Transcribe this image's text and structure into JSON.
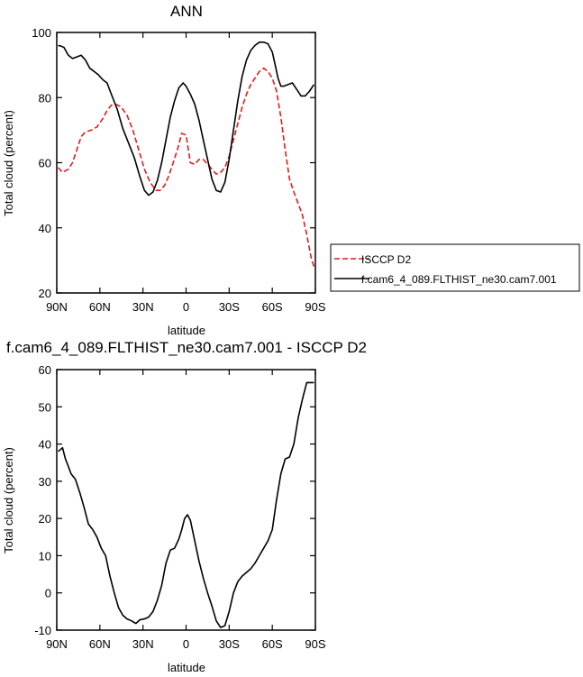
{
  "chart_data": [
    {
      "type": "line",
      "title": "ANN",
      "xlabel": "latitude",
      "ylabel": "Total cloud (percent)",
      "xlim": [
        90,
        -90
      ],
      "ylim": [
        20,
        100
      ],
      "x_ticks": [
        90,
        60,
        30,
        0,
        -30,
        -60,
        -90
      ],
      "x_tick_labels": [
        "90N",
        "60N",
        "30N",
        "0",
        "30S",
        "60S",
        "90S"
      ],
      "y_ticks": [
        20,
        40,
        60,
        80,
        100
      ],
      "y_tick_labels": [
        "20",
        "40",
        "60",
        "80",
        "100"
      ],
      "legend_position": "right",
      "series": [
        {
          "name": "ISCCP D2",
          "color": "#e41a1c",
          "dash": "dashed",
          "x": [
            89,
            86,
            82,
            79,
            76,
            73,
            70,
            66,
            62,
            58,
            55,
            52,
            48,
            45,
            41,
            37,
            33,
            29,
            25,
            21,
            18,
            15,
            12,
            9,
            6,
            3,
            0,
            -3,
            -6,
            -9,
            -12,
            -15,
            -18,
            -21,
            -24,
            -27,
            -30,
            -33,
            -36,
            -39,
            -42,
            -45,
            -48,
            -51,
            -54,
            -57,
            -60,
            -63,
            -66,
            -69,
            -72,
            -75,
            -78,
            -81,
            -84,
            -87,
            -89
          ],
          "values": [
            58.5,
            57,
            58,
            60,
            64,
            68,
            69.5,
            70,
            71,
            73.5,
            76,
            77.7,
            77.8,
            77,
            74.5,
            70,
            64,
            58,
            54,
            51.5,
            51.5,
            53,
            56,
            60,
            64,
            69,
            68.5,
            60,
            59.5,
            61,
            61,
            59.5,
            58,
            56.5,
            57,
            58.5,
            62,
            67,
            72,
            77,
            81,
            84,
            86,
            88,
            89,
            88,
            86,
            82,
            74,
            64,
            55,
            51,
            47.5,
            44,
            38,
            31,
            28
          ]
        },
        {
          "name": "f.cam6_4_089.FLTHIST_ne30.cam7.001",
          "color": "#000000",
          "dash": "solid",
          "x": [
            89,
            87,
            85,
            82,
            79,
            76,
            73,
            70,
            67,
            64,
            61,
            58,
            55,
            52,
            48,
            44,
            40,
            36,
            32,
            29,
            26,
            23,
            20,
            17,
            14,
            11,
            8,
            5,
            2,
            0,
            -3,
            -6,
            -9,
            -12,
            -15,
            -18,
            -21,
            -24,
            -27,
            -30,
            -33,
            -36,
            -39,
            -42,
            -45,
            -48,
            -51,
            -54,
            -57,
            -60,
            -62,
            -64,
            -66,
            -68,
            -71,
            -74,
            -77,
            -80,
            -83,
            -86,
            -89
          ],
          "values": [
            96,
            95.8,
            95.4,
            93,
            92,
            92.5,
            93,
            91.5,
            89,
            88,
            87,
            85.5,
            84.5,
            81,
            76.5,
            70.5,
            66,
            61.5,
            55.5,
            51.5,
            50,
            51,
            54.5,
            60,
            67,
            74,
            79,
            83,
            84.5,
            83.5,
            81,
            78,
            73,
            67,
            61,
            55,
            51.5,
            51,
            54,
            61,
            70,
            79,
            86.5,
            91.5,
            94.5,
            96,
            97,
            97,
            96.5,
            94,
            90,
            86,
            83.5,
            83.5,
            84,
            84.5,
            82.5,
            80.5,
            80.5,
            82,
            84
          ]
        }
      ]
    },
    {
      "type": "line",
      "title": "f.cam6_4_089.FLTHIST_ne30.cam7.001 - ISCCP D2",
      "xlabel": "latitude",
      "ylabel": "Total cloud (percent)",
      "xlim": [
        90,
        -90
      ],
      "ylim": [
        -10,
        60
      ],
      "x_ticks": [
        90,
        60,
        30,
        0,
        -30,
        -60,
        -90
      ],
      "x_tick_labels": [
        "90N",
        "60N",
        "30N",
        "0",
        "30S",
        "60S",
        "90S"
      ],
      "y_ticks": [
        -10,
        0,
        10,
        20,
        30,
        40,
        50,
        60
      ],
      "y_tick_labels": [
        "-10",
        "0",
        "10",
        "20",
        "30",
        "40",
        "50",
        "60"
      ],
      "series": [
        {
          "color": "#000000",
          "dash": "solid",
          "x": [
            89,
            86,
            84,
            82,
            80,
            77,
            74,
            71,
            68,
            65,
            62,
            59,
            56,
            53,
            50,
            47,
            44,
            41,
            38,
            35,
            32,
            29,
            26,
            23,
            20,
            17,
            14,
            11,
            8,
            5,
            3,
            1,
            -1,
            -3,
            -6,
            -9,
            -12,
            -15,
            -18,
            -21,
            -24,
            -27,
            -30,
            -33,
            -36,
            -39,
            -42,
            -45,
            -48,
            -51,
            -54,
            -57,
            -60,
            -63,
            -66,
            -69,
            -72,
            -75,
            -78,
            -81,
            -84,
            -87,
            -89
          ],
          "values": [
            38,
            39,
            36,
            34,
            32,
            30.5,
            27,
            23,
            18.5,
            17,
            15,
            12,
            10,
            4.5,
            0,
            -4,
            -6,
            -7,
            -7.5,
            -8.2,
            -7.2,
            -7,
            -6.5,
            -5,
            -2,
            2,
            8,
            11.5,
            12,
            14.5,
            17,
            20,
            21,
            19.5,
            14,
            8.5,
            4,
            0,
            -3.5,
            -7.5,
            -9.3,
            -8.8,
            -5,
            0,
            3,
            4.5,
            5.5,
            6.5,
            8,
            10,
            12,
            14,
            17,
            25,
            32,
            36,
            36.5,
            40,
            47,
            52,
            56.5,
            56.5,
            56.5
          ]
        }
      ]
    }
  ]
}
